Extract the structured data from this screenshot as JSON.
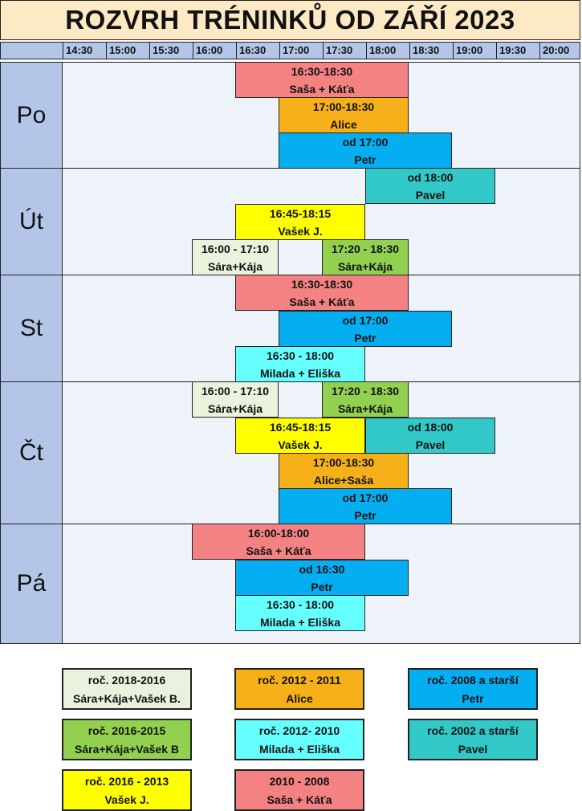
{
  "title": "ROZVRH TRÉNINKŮ OD ZÁŘÍ 2023",
  "times": [
    "14:30",
    "15:00",
    "15:30",
    "16:00",
    "16:30",
    "17:00",
    "17:30",
    "18:00",
    "18:30",
    "19:00",
    "19:30",
    "20:00"
  ],
  "colors": {
    "salmon": "#f48282",
    "orange": "#f5b01a",
    "blue": "#05aef0",
    "teal": "#33c8c8",
    "yellow": "#ffff00",
    "green": "#92d050",
    "lightgreen": "#e8f2dc",
    "cyan": "#66ffff"
  },
  "days": [
    {
      "label": "Po",
      "blocks": [
        {
          "time": "16:30-18:30",
          "who": "Saša + Káťa",
          "color": "salmon"
        },
        {
          "time": "17:00-18:30",
          "who": "Alice",
          "color": "orange"
        },
        {
          "time": "od 17:00",
          "who": "Petr",
          "color": "blue"
        }
      ]
    },
    {
      "label": "Út",
      "blocks": [
        {
          "time": "od 18:00",
          "who": "Pavel",
          "color": "teal"
        },
        {
          "time": "16:45-18:15",
          "who": "Vašek J.",
          "color": "yellow"
        },
        {
          "time": "16:00 - 17:10",
          "who": "Sára+Kája",
          "color": "lightgreen"
        },
        {
          "time": "17:20 - 18:30",
          "who": "Sára+Kája",
          "color": "green"
        }
      ]
    },
    {
      "label": "St",
      "blocks": [
        {
          "time": "16:30-18:30",
          "who": "Saša + Káťa",
          "color": "salmon"
        },
        {
          "time": "od 17:00",
          "who": "Petr",
          "color": "blue"
        },
        {
          "time": "16:30 - 18:00",
          "who": "Milada + Eliška",
          "color": "cyan"
        }
      ]
    },
    {
      "label": "Čt",
      "blocks": [
        {
          "time": "16:00 - 17:10",
          "who": "Sára+Kája",
          "color": "lightgreen"
        },
        {
          "time": "17:20 - 18:30",
          "who": "Sára+Kája",
          "color": "green"
        },
        {
          "time": "16:45-18:15",
          "who": "Vašek J.",
          "color": "yellow"
        },
        {
          "time": "od 18:00",
          "who": "Pavel",
          "color": "teal"
        },
        {
          "time": "17:00-18:30",
          "who": "Alice+Saša",
          "color": "orange"
        },
        {
          "time": "od 17:00",
          "who": "Petr",
          "color": "blue"
        }
      ]
    },
    {
      "label": "Pá",
      "blocks": [
        {
          "time": "16:00-18:00",
          "who": "Saša + Káťa",
          "color": "salmon"
        },
        {
          "time": "od 16:30",
          "who": "Petr",
          "color": "blue"
        },
        {
          "time": "16:30 - 18:00",
          "who": "Milada + Eliška",
          "color": "cyan"
        }
      ]
    }
  ],
  "legend": [
    {
      "line1": "roč. 2018-2016",
      "line2": "Sára+Kája+Vašek B.",
      "color": "lightgreen"
    },
    {
      "line1": "roč. 2012 - 2011",
      "line2": "Alice",
      "color": "orange"
    },
    {
      "line1": "roč. 2008 a starší",
      "line2": "Petr",
      "color": "blue"
    },
    {
      "line1": "roč. 2016-2015",
      "line2": "Sára+Kája+Vašek B",
      "color": "green"
    },
    {
      "line1": "roč. 2012- 2010",
      "line2": "Milada + Eliška",
      "color": "cyan"
    },
    {
      "line1": "roč. 2002 a starší",
      "line2": "Pavel",
      "color": "teal"
    },
    {
      "line1": "roč. 2016 - 2013",
      "line2": "Vašek J.",
      "color": "yellow"
    },
    {
      "line1": "2010 - 2008",
      "line2": "Saša + Káťa",
      "color": "salmon"
    }
  ]
}
